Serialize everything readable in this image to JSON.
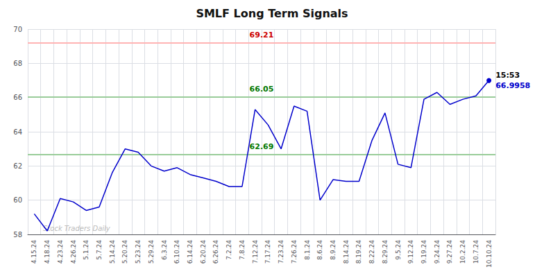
{
  "chart_data": {
    "type": "line",
    "title": "SMLF Long Term Signals",
    "categories": [
      "4.15.24",
      "4.18.24",
      "4.23.24",
      "4.26.24",
      "5.1.24",
      "5.7.24",
      "5.14.24",
      "5.20.24",
      "5.23.24",
      "5.29.24",
      "6.3.24",
      "6.10.24",
      "6.14.24",
      "6.20.24",
      "6.26.24",
      "7.2.24",
      "7.8.24",
      "7.12.24",
      "7.17.24",
      "7.23.24",
      "7.26.24",
      "8.1.24",
      "8.6.24",
      "8.9.24",
      "8.14.24",
      "8.19.24",
      "8.22.24",
      "8.29.24",
      "9.5.24",
      "9.12.24",
      "9.19.24",
      "9.24.24",
      "9.27.24",
      "10.2.24",
      "10.7.24",
      "10.10.24"
    ],
    "values": [
      59.2,
      58.2,
      60.1,
      59.9,
      59.4,
      59.6,
      61.6,
      63.0,
      62.8,
      62.0,
      61.7,
      61.9,
      61.5,
      61.3,
      61.1,
      60.8,
      60.8,
      65.3,
      64.4,
      63.0,
      65.5,
      65.2,
      60.0,
      61.2,
      61.1,
      61.1,
      63.5,
      65.1,
      62.1,
      61.9,
      65.9,
      66.3,
      65.6,
      65.9,
      66.1,
      66.9958
    ],
    "color": "#0000cc",
    "ylim": [
      58,
      70
    ],
    "yticks": [
      58,
      60,
      62,
      64,
      66,
      68,
      70
    ],
    "grid": true,
    "hlines": [
      {
        "value": 69.21,
        "color": "#ffb3b3",
        "label_color": "#cc0000"
      },
      {
        "value": 66.05,
        "color": "#99cc99",
        "label_color": "#007700"
      },
      {
        "value": 62.69,
        "color": "#99cc99",
        "label_color": "#007700"
      }
    ],
    "annotations": [
      {
        "text": "15:53",
        "color": "#000000"
      },
      {
        "text": "66.9958",
        "color": "#0000cc"
      }
    ],
    "watermark": {
      "text": "Stock Traders Daily",
      "color": "#bbbbbb"
    }
  }
}
